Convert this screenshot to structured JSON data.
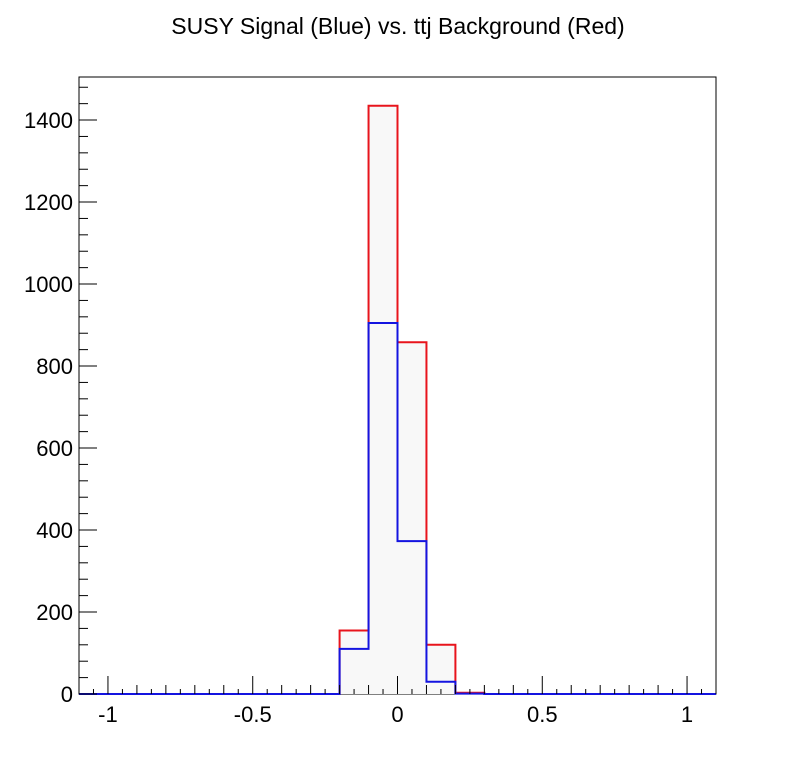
{
  "chart_data": {
    "type": "histogram",
    "title": "SUSY Signal (Blue) vs. ttj Background (Red)",
    "xlabel": "",
    "ylabel": "",
    "xlim": [
      -1.1,
      1.1
    ],
    "ylim": [
      0,
      1505
    ],
    "bin_edges": [
      -1.1,
      -1.0,
      -0.9,
      -0.8,
      -0.7,
      -0.6,
      -0.5,
      -0.4,
      -0.3,
      -0.2,
      -0.1,
      0.0,
      0.1,
      0.2,
      0.3,
      0.4,
      0.5,
      0.6,
      0.7,
      0.8,
      0.9,
      1.0,
      1.1
    ],
    "x_ticks": [
      -1,
      -0.5,
      0,
      0.5,
      1
    ],
    "x_tick_labels": [
      "-1",
      "-0.5",
      "0",
      "0.5",
      "1"
    ],
    "y_ticks": [
      0,
      200,
      400,
      600,
      800,
      1000,
      1200,
      1400
    ],
    "y_tick_labels": [
      "0",
      "200",
      "400",
      "600",
      "800",
      "1000",
      "1200",
      "1400"
    ],
    "grid": false,
    "series": [
      {
        "color": "#e8141c",
        "values": [
          0,
          0,
          0,
          0,
          0,
          0,
          0,
          0,
          0,
          155,
          1435,
          858,
          120,
          3,
          0,
          0,
          0,
          0,
          0,
          0,
          0,
          0
        ]
      },
      {
        "color": "#1414e0",
        "values": [
          0,
          0,
          0,
          0,
          0,
          0,
          0,
          0,
          0,
          110,
          905,
          373,
          30,
          1,
          0,
          0,
          0,
          0,
          0,
          0,
          0,
          0
        ]
      }
    ]
  }
}
